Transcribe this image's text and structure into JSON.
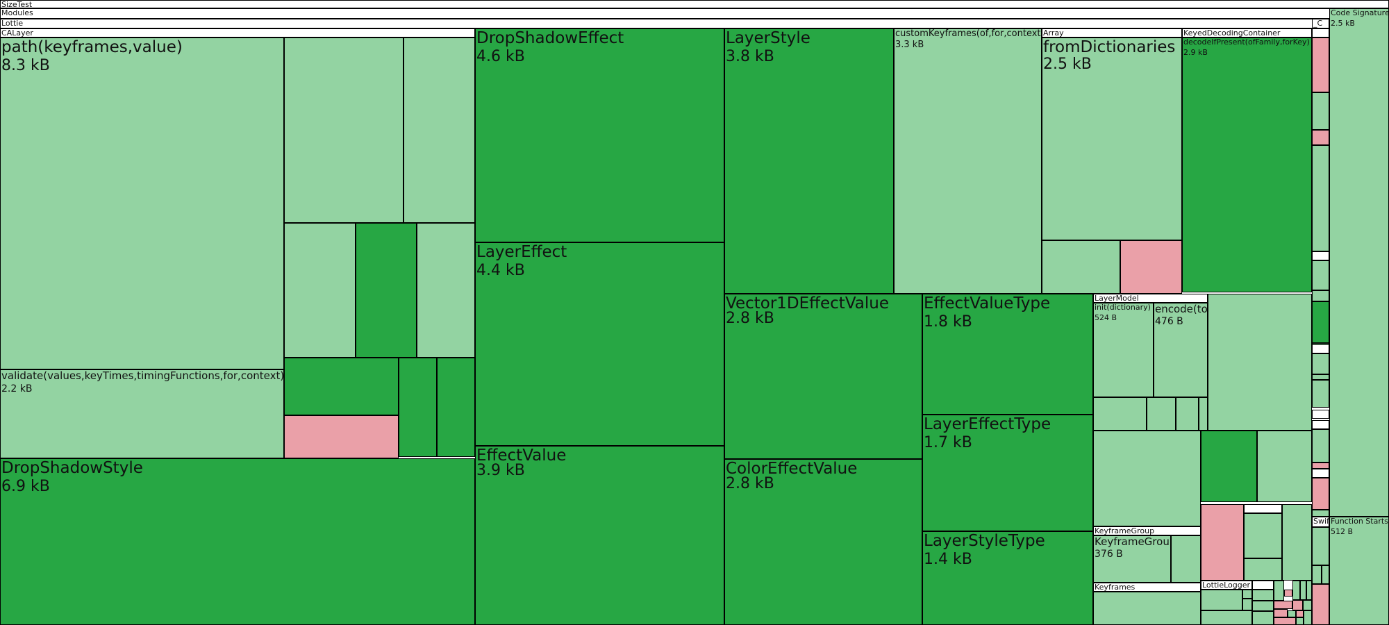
{
  "title": "SizeTest",
  "colors": {
    "dark": "#27a744",
    "light": "#93d3a2",
    "pink": "#eaa0a8",
    "header": "#ffffff",
    "border": "#000000"
  },
  "labels": {
    "sizetest": "SizeTest",
    "modules": "Modules",
    "lottie": "Lottie",
    "calayer": "CALayer",
    "path_name": "path(keyframes,value)",
    "path_size": "8.3 kB",
    "validate_name": "validate(values,keyTimes,timingFunctions,for,context)",
    "validate_size": "2.2 kB",
    "dropshadowstyle_name": "DropShadowStyle",
    "dropshadowstyle_size": "6.9 kB",
    "dropshadoweffect_name": "DropShadowEffect",
    "dropshadoweffect_size": "4.6 kB",
    "layereffect_name": "LayerEffect",
    "layereffect_size": "4.4 kB",
    "effectvalue_name": "EffectValue",
    "effectvalue_size": "3.9 kB",
    "layerstyle_name": "LayerStyle",
    "layerstyle_size": "3.8 kB",
    "customkeyframes_name": "customKeyframes(of,for,context)",
    "customkeyframes_size": "3.3 kB",
    "array": "Array",
    "fromdictionaries_name": "fromDictionaries",
    "fromdictionaries_size": "2.5 kB",
    "keyeddecoding": "KeyedDecodingContainer",
    "decodeifpresent_name": "decodeIfPresent(ofFamily,forKey)",
    "decodeifpresent_size": "2.9 kB",
    "c_label": "_C",
    "codesignature_name": "Code Signature",
    "codesignature_size": "2.5 kB",
    "vector1d_name": "Vector1DEffectValue",
    "vector1d_size": "2.8 kB",
    "coloreffect_name": "ColorEffectValue",
    "coloreffect_size": "2.8 kB",
    "effectvaluetype_name": "EffectValueType",
    "effectvaluetype_size": "1.8 kB",
    "layereffecttype_name": "LayerEffectType",
    "layereffecttype_size": "1.7 kB",
    "layerstyletype_name": "LayerStyleType",
    "layerstyletype_size": "1.4 kB",
    "layermodel": "LayerModel",
    "init_name": "init(dictionary)",
    "init_size": "524 B",
    "encode_name": "encode(to)",
    "encode_size": "476 B",
    "keyframegroup_hdr": "KeyframeGroup",
    "keyframegroup_name": "KeyframeGroup",
    "keyframegroup_size": "376 B",
    "keyframes": "Keyframes",
    "lottielogger": "LottieLogger",
    "swift": "Swift",
    "functionstarts_name": "Function Starts",
    "functionstarts_size": "512 B"
  }
}
